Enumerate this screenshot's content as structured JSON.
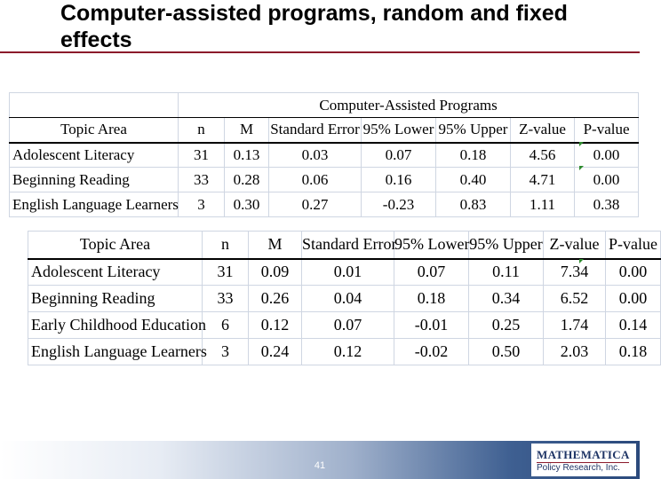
{
  "slide": {
    "title": "Computer-assisted programs, random and fixed effects",
    "page_number": "41"
  },
  "table1": {
    "caption": "Computer-Assisted Programs",
    "headers": [
      "Topic Area",
      "n",
      "M",
      "Standard Error",
      "95% Lower",
      "95% Upper",
      "Z-value",
      "P-value"
    ],
    "rows": [
      [
        "Adolescent Literacy",
        "31",
        "0.13",
        "0.03",
        "0.07",
        "0.18",
        "4.56",
        "0.00"
      ],
      [
        "Beginning Reading",
        "33",
        "0.28",
        "0.06",
        "0.16",
        "0.40",
        "4.71",
        "0.00"
      ],
      [
        "English Language Learners",
        "3",
        "0.30",
        "0.27",
        "-0.23",
        "0.83",
        "1.11",
        "0.38"
      ]
    ]
  },
  "table2": {
    "headers": [
      "Topic Area",
      "n",
      "M",
      "Standard Error",
      "95% Lower",
      "95% Upper",
      "Z-value",
      "P-value"
    ],
    "rows": [
      [
        "Adolescent Literacy",
        "31",
        "0.09",
        "0.01",
        "0.07",
        "0.11",
        "7.34",
        "0.00"
      ],
      [
        "Beginning Reading",
        "33",
        "0.26",
        "0.04",
        "0.18",
        "0.34",
        "6.52",
        "0.00"
      ],
      [
        "Early Childhood Education",
        "6",
        "0.12",
        "0.07",
        "-0.01",
        "0.25",
        "1.74",
        "0.14"
      ],
      [
        "English Language Learners",
        "3",
        "0.24",
        "0.12",
        "-0.02",
        "0.50",
        "2.03",
        "0.18"
      ]
    ]
  },
  "logo": {
    "name": "MATHEMATICA",
    "tagline": "Policy Research, Inc."
  },
  "colors": {
    "title_rule": "#8b1a2b",
    "footer_band": "#2b4a7c",
    "logo_text": "#1f3566",
    "cell_marker": "#2e8b2e"
  }
}
